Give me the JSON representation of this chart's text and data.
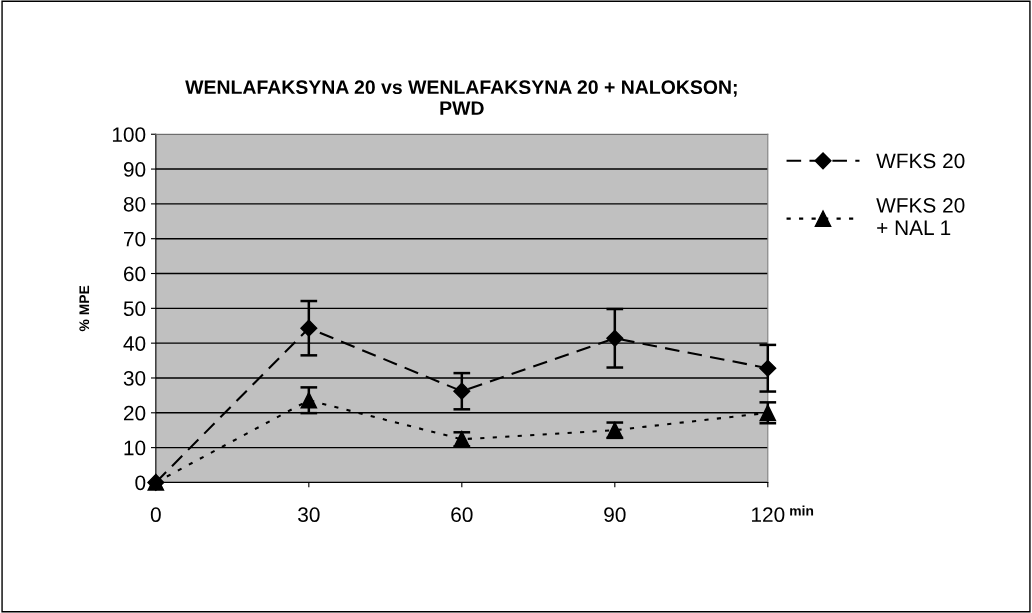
{
  "chart_data": {
    "type": "line",
    "title": "WENLAFAKSYNA 20 vs WENLAFAKSYNA 20 + NALOKSON;\nPWD",
    "ylabel": "% MPE",
    "xlabel": "min",
    "categories": [
      "0",
      "30",
      "60",
      "90",
      "120"
    ],
    "series": [
      {
        "name": "WFKS 20",
        "color": "#000000",
        "marker": "diamond",
        "line_style": "dashed",
        "values": [
          0,
          44.3,
          26.2,
          41.4,
          32.8
        ],
        "errors": [
          null,
          7.8,
          5.2,
          8.4,
          6.7
        ]
      },
      {
        "name": "WFKS 20\n+ NAL 1",
        "color": "#000000",
        "marker": "triangle",
        "line_style": "dotted",
        "values": [
          0,
          23.6,
          12.4,
          15.0,
          20.0
        ],
        "errors": [
          null,
          3.7,
          2.0,
          2.2,
          3.0
        ]
      }
    ],
    "ylim": [
      0,
      100
    ],
    "yticks": [
      0,
      10,
      20,
      30,
      40,
      50,
      60,
      70,
      80,
      90,
      100
    ],
    "grid": "y",
    "legend": "right"
  }
}
